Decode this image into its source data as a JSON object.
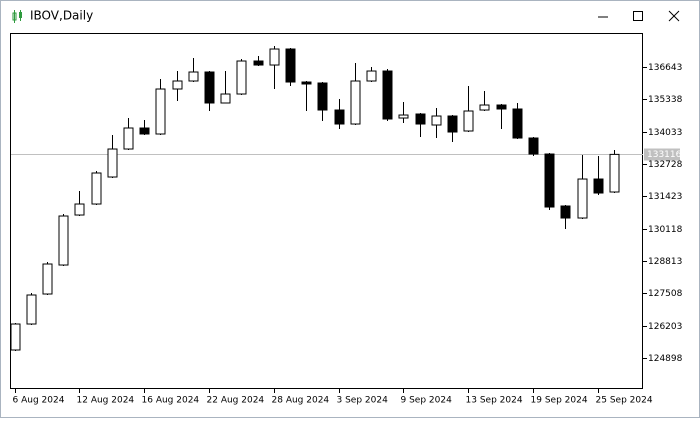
{
  "chart_data": {
    "type": "candlestick",
    "title": "IBOV,Daily",
    "categories": [
      "6 Aug 2024",
      null,
      null,
      null,
      "12 Aug 2024",
      null,
      null,
      null,
      "16 Aug 2024",
      null,
      null,
      null,
      "22 Aug 2024",
      null,
      null,
      null,
      "28 Aug 2024",
      null,
      null,
      null,
      "3 Sep 2024",
      null,
      null,
      null,
      "9 Sep 2024",
      null,
      null,
      null,
      "13 Sep 2024",
      null,
      null,
      null,
      "19 Sep 2024",
      null,
      null,
      null,
      "25 Sep 2024",
      null
    ],
    "open": [
      125221,
      126270,
      127481,
      128651,
      130669,
      131113,
      132203,
      133333,
      134181,
      133939,
      135755,
      136078,
      136441,
      135190,
      135553,
      136885,
      136723,
      137369,
      136037,
      135997,
      134907,
      134342,
      136078,
      136481,
      134584,
      134746,
      134302,
      134665,
      134060,
      134907,
      135109,
      134948,
      133777,
      133131,
      131033,
      130548,
      132122,
      131598
    ],
    "high": [
      126311,
      127521,
      128773,
      130710,
      131638,
      132445,
      133898,
      134584,
      134504,
      136158,
      136481,
      137006,
      136481,
      136481,
      136966,
      137087,
      137490,
      137410,
      136078,
      136037,
      135351,
      136804,
      136643,
      136562,
      135230,
      134786,
      134988,
      134705,
      135876,
      135674,
      135149,
      135190,
      133818,
      133171,
      131073,
      133091,
      133051,
      133293
    ],
    "low": [
      125181,
      126230,
      127441,
      128611,
      130629,
      131073,
      132163,
      133293,
      133898,
      133898,
      135271,
      136037,
      134867,
      135190,
      135513,
      136683,
      135755,
      135876,
      134867,
      134463,
      134140,
      134302,
      136037,
      134463,
      134383,
      133818,
      133777,
      133616,
      134019,
      134867,
      134140,
      133737,
      133051,
      130871,
      130104,
      130508,
      131477,
      131557
    ],
    "close": [
      126270,
      127441,
      128692,
      130629,
      131113,
      132365,
      133333,
      134181,
      133939,
      135755,
      136078,
      136441,
      135190,
      135553,
      136885,
      136723,
      137369,
      136037,
      135957,
      134907,
      134342,
      136078,
      136481,
      134544,
      134705,
      134342,
      134665,
      134019,
      134867,
      135109,
      134948,
      133777,
      133131,
      130992,
      130548,
      132122,
      131557,
      133116
    ],
    "up_color": "#ffffff",
    "down_color": "#000000",
    "line_color": "#000000",
    "ylim": [
      123647,
      137975
    ],
    "yticks": [
      124898,
      126203,
      127508,
      128813,
      130118,
      131423,
      132728,
      134033,
      135338,
      136643
    ],
    "current_price": 133116,
    "current_price_color": "#c0c0c0",
    "grid": false
  }
}
